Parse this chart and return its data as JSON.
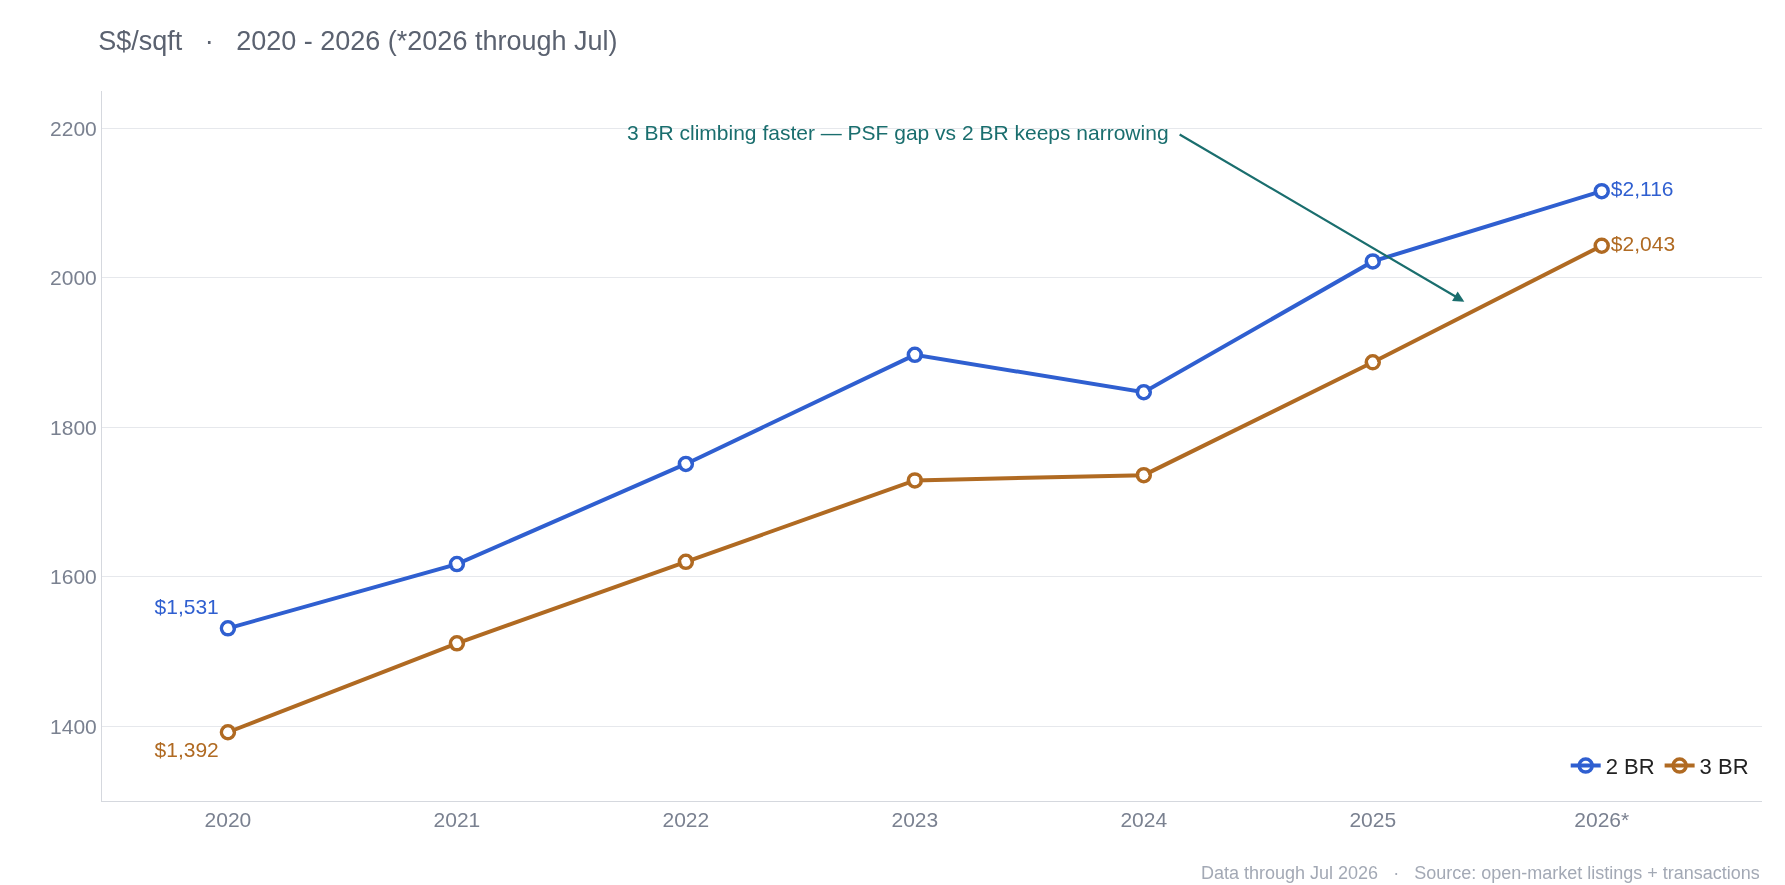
{
  "chart_data": {
    "type": "line",
    "title": "S$/sqft   ·   2020 - 2026 (*2026 through Jul)",
    "categories": [
      "2020",
      "2021",
      "2022",
      "2023",
      "2024",
      "2025",
      "2026*"
    ],
    "series": [
      {
        "name": "2 BR",
        "color": "#2f5fd0",
        "values": [
          1531,
          1617,
          1751,
          1897,
          1847,
          2022,
          2116
        ],
        "value_labels": [
          "$1,531",
          null,
          null,
          null,
          null,
          null,
          "$2,116"
        ]
      },
      {
        "name": "3 BR",
        "color": "#b06a22",
        "values": [
          1392,
          1511,
          1620,
          1729,
          1736,
          1887,
          2043
        ],
        "value_labels": [
          "$1,392",
          null,
          null,
          null,
          null,
          null,
          "$2,043"
        ]
      }
    ],
    "ylim": [
      1300,
      2250
    ],
    "yticks": [
      1400,
      1600,
      1800,
      2000,
      2200
    ],
    "grid": "y",
    "legend": "bottom right",
    "marker": "circle",
    "line_style": "solid",
    "annotations": [
      "3 BR climbing faster — PSF gap vs 2 BR keeps narrowing",
      "Data through Jul 2026   ·   Source: open-market listings + transactions"
    ]
  }
}
